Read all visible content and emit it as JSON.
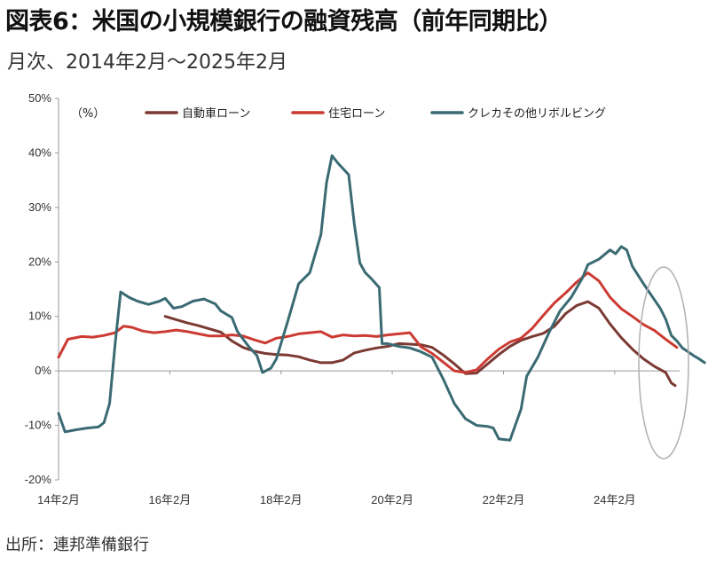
{
  "title": "図表6：米国の小規模銀行の融資残高（前年同期比）",
  "subtitle": "月次、2014年2月～2025年2月",
  "source": "出所：連邦準備銀行",
  "chart_data": {
    "type": "line",
    "unit_label": "（%）",
    "y_ticks": [
      "50%",
      "40%",
      "30%",
      "20%",
      "10%",
      "0%",
      "-10%",
      "-20%"
    ],
    "ylim": [
      -20,
      50
    ],
    "x_ticks": [
      {
        "label": "14年2月",
        "year": 2014.083
      },
      {
        "label": "16年2月",
        "year": 2016.083
      },
      {
        "label": "18年2月",
        "year": 2018.083
      },
      {
        "label": "20年2月",
        "year": 2020.083
      },
      {
        "label": "22年2月",
        "year": 2022.083
      },
      {
        "label": "24年2月",
        "year": 2024.083
      }
    ],
    "xlim": [
      2014.083,
      2025.25
    ],
    "legend_position": "top",
    "highlight_ellipse": true,
    "series": [
      {
        "name": "自動車ローン",
        "color": "#7b3a33",
        "points": [
          [
            2016.0,
            10
          ],
          [
            2016.2,
            9.4
          ],
          [
            2016.4,
            8.8
          ],
          [
            2016.6,
            8.3
          ],
          [
            2016.8,
            7.7
          ],
          [
            2017.0,
            7.1
          ],
          [
            2017.2,
            5.5
          ],
          [
            2017.4,
            4.3
          ],
          [
            2017.6,
            3.6
          ],
          [
            2017.8,
            3.2
          ],
          [
            2018.0,
            3.0
          ],
          [
            2018.2,
            2.9
          ],
          [
            2018.4,
            2.6
          ],
          [
            2018.6,
            2.0
          ],
          [
            2018.8,
            1.5
          ],
          [
            2019.0,
            1.5
          ],
          [
            2019.2,
            2.0
          ],
          [
            2019.4,
            3.3
          ],
          [
            2019.6,
            3.8
          ],
          [
            2019.8,
            4.2
          ],
          [
            2020.0,
            4.5
          ],
          [
            2020.2,
            5.0
          ],
          [
            2020.4,
            4.9
          ],
          [
            2020.6,
            4.8
          ],
          [
            2020.8,
            4.3
          ],
          [
            2021.0,
            2.9
          ],
          [
            2021.2,
            1.3
          ],
          [
            2021.4,
            -0.5
          ],
          [
            2021.6,
            -0.4
          ],
          [
            2021.8,
            1.3
          ],
          [
            2022.0,
            3.0
          ],
          [
            2022.2,
            4.5
          ],
          [
            2022.4,
            5.6
          ],
          [
            2022.6,
            6.3
          ],
          [
            2022.8,
            6.9
          ],
          [
            2023.0,
            8.2
          ],
          [
            2023.2,
            10.5
          ],
          [
            2023.4,
            12.0
          ],
          [
            2023.6,
            12.7
          ],
          [
            2023.8,
            11.5
          ],
          [
            2024.0,
            8.6
          ],
          [
            2024.2,
            6.1
          ],
          [
            2024.4,
            4.0
          ],
          [
            2024.6,
            2.2
          ],
          [
            2024.8,
            0.8
          ],
          [
            2025.0,
            -0.3
          ],
          [
            2025.1,
            -2.2
          ],
          [
            2025.17,
            -2.7
          ]
        ]
      },
      {
        "name": "住宅ローン",
        "color": "#cc3b33",
        "points": [
          [
            2014.083,
            2.5
          ],
          [
            2014.25,
            5.8
          ],
          [
            2014.5,
            6.3
          ],
          [
            2014.7,
            6.2
          ],
          [
            2014.9,
            6.5
          ],
          [
            2015.1,
            7.0
          ],
          [
            2015.25,
            8.2
          ],
          [
            2015.4,
            8.0
          ],
          [
            2015.6,
            7.3
          ],
          [
            2015.8,
            7.0
          ],
          [
            2016.0,
            7.2
          ],
          [
            2016.2,
            7.5
          ],
          [
            2016.4,
            7.2
          ],
          [
            2016.6,
            6.8
          ],
          [
            2016.8,
            6.4
          ],
          [
            2017.0,
            6.4
          ],
          [
            2017.2,
            6.6
          ],
          [
            2017.4,
            6.4
          ],
          [
            2017.6,
            5.7
          ],
          [
            2017.8,
            5.1
          ],
          [
            2018.0,
            6.0
          ],
          [
            2018.2,
            6.3
          ],
          [
            2018.4,
            6.8
          ],
          [
            2018.6,
            7.0
          ],
          [
            2018.8,
            7.2
          ],
          [
            2019.0,
            6.2
          ],
          [
            2019.2,
            6.6
          ],
          [
            2019.4,
            6.4
          ],
          [
            2019.6,
            6.5
          ],
          [
            2019.8,
            6.3
          ],
          [
            2020.0,
            6.6
          ],
          [
            2020.2,
            6.8
          ],
          [
            2020.4,
            7.0
          ],
          [
            2020.6,
            4.4
          ],
          [
            2020.8,
            3.2
          ],
          [
            2021.0,
            1.6
          ],
          [
            2021.2,
            0.0
          ],
          [
            2021.4,
            -0.3
          ],
          [
            2021.6,
            0.2
          ],
          [
            2021.8,
            2.2
          ],
          [
            2022.0,
            4.0
          ],
          [
            2022.2,
            5.3
          ],
          [
            2022.4,
            6.0
          ],
          [
            2022.6,
            7.8
          ],
          [
            2022.8,
            10.2
          ],
          [
            2023.0,
            12.5
          ],
          [
            2023.2,
            14.3
          ],
          [
            2023.4,
            16.3
          ],
          [
            2023.6,
            18.0
          ],
          [
            2023.8,
            16.5
          ],
          [
            2024.0,
            13.5
          ],
          [
            2024.2,
            11.4
          ],
          [
            2024.4,
            10.0
          ],
          [
            2024.6,
            8.5
          ],
          [
            2024.8,
            7.4
          ],
          [
            2025.0,
            5.8
          ],
          [
            2025.2,
            4.3
          ]
        ]
      },
      {
        "name": "クレカその他リボルビング",
        "color": "#3a6a72",
        "points": [
          [
            2014.083,
            -7.8
          ],
          [
            2014.2,
            -11.2
          ],
          [
            2014.4,
            -10.8
          ],
          [
            2014.6,
            -10.5
          ],
          [
            2014.8,
            -10.3
          ],
          [
            2014.9,
            -9.5
          ],
          [
            2015.0,
            -6.0
          ],
          [
            2015.1,
            5.0
          ],
          [
            2015.2,
            14.5
          ],
          [
            2015.35,
            13.5
          ],
          [
            2015.5,
            12.8
          ],
          [
            2015.7,
            12.2
          ],
          [
            2015.9,
            12.8
          ],
          [
            2016.0,
            13.3
          ],
          [
            2016.15,
            11.5
          ],
          [
            2016.3,
            11.8
          ],
          [
            2016.5,
            12.8
          ],
          [
            2016.7,
            13.2
          ],
          [
            2016.9,
            12.3
          ],
          [
            2017.0,
            11.0
          ],
          [
            2017.2,
            9.8
          ],
          [
            2017.3,
            7.2
          ],
          [
            2017.5,
            4.5
          ],
          [
            2017.65,
            2.8
          ],
          [
            2017.75,
            -0.3
          ],
          [
            2017.9,
            0.5
          ],
          [
            2018.0,
            2.2
          ],
          [
            2018.2,
            9.0
          ],
          [
            2018.4,
            16.0
          ],
          [
            2018.6,
            18.0
          ],
          [
            2018.8,
            25.0
          ],
          [
            2018.9,
            34.5
          ],
          [
            2019.0,
            39.5
          ],
          [
            2019.1,
            38.2
          ],
          [
            2019.3,
            36.0
          ],
          [
            2019.4,
            27.0
          ],
          [
            2019.5,
            19.8
          ],
          [
            2019.6,
            18.0
          ],
          [
            2019.7,
            17.0
          ],
          [
            2019.85,
            15.3
          ],
          [
            2019.9,
            5.0
          ],
          [
            2020.0,
            5.0
          ],
          [
            2020.2,
            4.5
          ],
          [
            2020.4,
            4.2
          ],
          [
            2020.6,
            3.5
          ],
          [
            2020.8,
            2.5
          ],
          [
            2021.0,
            -1.5
          ],
          [
            2021.2,
            -6.0
          ],
          [
            2021.4,
            -8.8
          ],
          [
            2021.6,
            -10.0
          ],
          [
            2021.8,
            -10.2
          ],
          [
            2021.9,
            -10.5
          ],
          [
            2022.0,
            -12.5
          ],
          [
            2022.2,
            -12.7
          ],
          [
            2022.4,
            -7.0
          ],
          [
            2022.5,
            -1.0
          ],
          [
            2022.7,
            2.5
          ],
          [
            2022.9,
            7.0
          ],
          [
            2023.1,
            11.0
          ],
          [
            2023.3,
            13.5
          ],
          [
            2023.5,
            17.0
          ],
          [
            2023.6,
            19.5
          ],
          [
            2023.8,
            20.5
          ],
          [
            2024.0,
            22.2
          ],
          [
            2024.1,
            21.5
          ],
          [
            2024.2,
            22.8
          ],
          [
            2024.3,
            22.2
          ],
          [
            2024.4,
            19.2
          ],
          [
            2024.6,
            16.0
          ],
          [
            2024.8,
            13.0
          ],
          [
            2024.9,
            11.5
          ],
          [
            2025.0,
            9.5
          ],
          [
            2025.1,
            6.5
          ],
          [
            2025.2,
            5.5
          ],
          [
            2025.3,
            4.2
          ],
          [
            2025.5,
            2.8
          ],
          [
            2025.6,
            2.2
          ],
          [
            2025.7,
            1.5
          ]
        ]
      }
    ]
  }
}
